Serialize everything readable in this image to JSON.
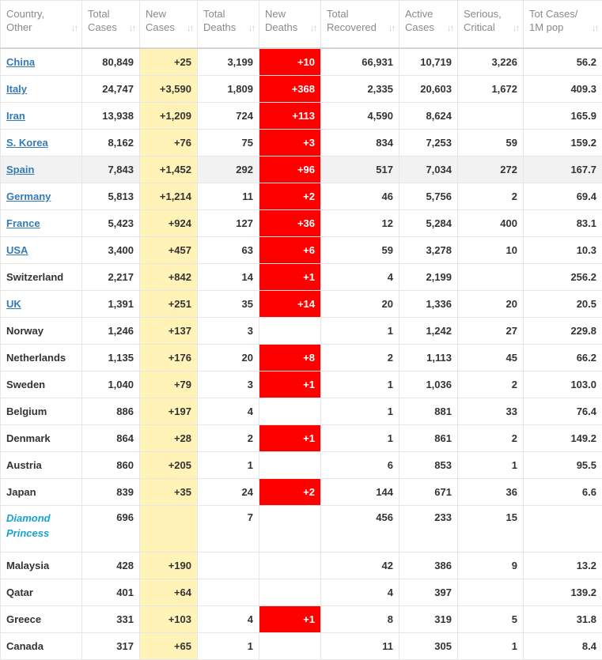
{
  "headers": [
    {
      "label": "Country,\nOther",
      "key": "country"
    },
    {
      "label": "Total\nCases",
      "key": "total_cases"
    },
    {
      "label": "New\nCases",
      "key": "new_cases"
    },
    {
      "label": "Total\nDeaths",
      "key": "total_deaths"
    },
    {
      "label": "New\nDeaths",
      "key": "new_deaths"
    },
    {
      "label": "Total\nRecovered",
      "key": "total_recovered"
    },
    {
      "label": "Active\nCases",
      "key": "active_cases"
    },
    {
      "label": "Serious,\nCritical",
      "key": "serious"
    },
    {
      "label": "Tot Cases/\n1M pop",
      "key": "per_million"
    }
  ],
  "colors": {
    "new_cases_bg": "#fff3b8",
    "new_deaths_bg": "#ff0000",
    "link": "#337ab7"
  },
  "rows": [
    {
      "country": "China",
      "link": true,
      "total_cases": "80,849",
      "new_cases": "+25",
      "total_deaths": "3,199",
      "new_deaths": "+10",
      "total_recovered": "66,931",
      "active_cases": "10,719",
      "serious": "3,226",
      "per_million": "56.2"
    },
    {
      "country": "Italy",
      "link": true,
      "total_cases": "24,747",
      "new_cases": "+3,590",
      "total_deaths": "1,809",
      "new_deaths": "+368",
      "total_recovered": "2,335",
      "active_cases": "20,603",
      "serious": "1,672",
      "per_million": "409.3"
    },
    {
      "country": "Iran",
      "link": true,
      "total_cases": "13,938",
      "new_cases": "+1,209",
      "total_deaths": "724",
      "new_deaths": "+113",
      "total_recovered": "4,590",
      "active_cases": "8,624",
      "serious": "",
      "per_million": "165.9"
    },
    {
      "country": "S. Korea",
      "link": true,
      "total_cases": "8,162",
      "new_cases": "+76",
      "total_deaths": "75",
      "new_deaths": "+3",
      "total_recovered": "834",
      "active_cases": "7,253",
      "serious": "59",
      "per_million": "159.2"
    },
    {
      "country": "Spain",
      "link": true,
      "highlight": true,
      "total_cases": "7,843",
      "new_cases": "+1,452",
      "total_deaths": "292",
      "new_deaths": "+96",
      "total_recovered": "517",
      "active_cases": "7,034",
      "serious": "272",
      "per_million": "167.7"
    },
    {
      "country": "Germany",
      "link": true,
      "total_cases": "5,813",
      "new_cases": "+1,214",
      "total_deaths": "11",
      "new_deaths": "+2",
      "total_recovered": "46",
      "active_cases": "5,756",
      "serious": "2",
      "per_million": "69.4"
    },
    {
      "country": "France",
      "link": true,
      "total_cases": "5,423",
      "new_cases": "+924",
      "total_deaths": "127",
      "new_deaths": "+36",
      "total_recovered": "12",
      "active_cases": "5,284",
      "serious": "400",
      "per_million": "83.1"
    },
    {
      "country": "USA",
      "link": true,
      "total_cases": "3,400",
      "new_cases": "+457",
      "total_deaths": "63",
      "new_deaths": "+6",
      "total_recovered": "59",
      "active_cases": "3,278",
      "serious": "10",
      "per_million": "10.3"
    },
    {
      "country": "Switzerland",
      "link": false,
      "total_cases": "2,217",
      "new_cases": "+842",
      "total_deaths": "14",
      "new_deaths": "+1",
      "total_recovered": "4",
      "active_cases": "2,199",
      "serious": "",
      "per_million": "256.2"
    },
    {
      "country": "UK",
      "link": true,
      "total_cases": "1,391",
      "new_cases": "+251",
      "total_deaths": "35",
      "new_deaths": "+14",
      "total_recovered": "20",
      "active_cases": "1,336",
      "serious": "20",
      "per_million": "20.5"
    },
    {
      "country": "Norway",
      "link": false,
      "total_cases": "1,246",
      "new_cases": "+137",
      "total_deaths": "3",
      "new_deaths": "",
      "total_recovered": "1",
      "active_cases": "1,242",
      "serious": "27",
      "per_million": "229.8"
    },
    {
      "country": "Netherlands",
      "link": false,
      "total_cases": "1,135",
      "new_cases": "+176",
      "total_deaths": "20",
      "new_deaths": "+8",
      "total_recovered": "2",
      "active_cases": "1,113",
      "serious": "45",
      "per_million": "66.2"
    },
    {
      "country": "Sweden",
      "link": false,
      "total_cases": "1,040",
      "new_cases": "+79",
      "total_deaths": "3",
      "new_deaths": "+1",
      "total_recovered": "1",
      "active_cases": "1,036",
      "serious": "2",
      "per_million": "103.0"
    },
    {
      "country": "Belgium",
      "link": false,
      "total_cases": "886",
      "new_cases": "+197",
      "total_deaths": "4",
      "new_deaths": "",
      "total_recovered": "1",
      "active_cases": "881",
      "serious": "33",
      "per_million": "76.4"
    },
    {
      "country": "Denmark",
      "link": false,
      "total_cases": "864",
      "new_cases": "+28",
      "total_deaths": "2",
      "new_deaths": "+1",
      "total_recovered": "1",
      "active_cases": "861",
      "serious": "2",
      "per_million": "149.2"
    },
    {
      "country": "Austria",
      "link": false,
      "total_cases": "860",
      "new_cases": "+205",
      "total_deaths": "1",
      "new_deaths": "",
      "total_recovered": "6",
      "active_cases": "853",
      "serious": "1",
      "per_million": "95.5"
    },
    {
      "country": "Japan",
      "link": false,
      "total_cases": "839",
      "new_cases": "+35",
      "total_deaths": "24",
      "new_deaths": "+2",
      "total_recovered": "144",
      "active_cases": "671",
      "serious": "36",
      "per_million": "6.6"
    },
    {
      "country": "Diamond Princess",
      "link": true,
      "diamond": true,
      "tall": true,
      "total_cases": "696",
      "new_cases": "",
      "total_deaths": "7",
      "new_deaths": "",
      "total_recovered": "456",
      "active_cases": "233",
      "serious": "15",
      "per_million": ""
    },
    {
      "country": "Malaysia",
      "link": false,
      "total_cases": "428",
      "new_cases": "+190",
      "total_deaths": "",
      "new_deaths": "",
      "total_recovered": "42",
      "active_cases": "386",
      "serious": "9",
      "per_million": "13.2"
    },
    {
      "country": "Qatar",
      "link": false,
      "total_cases": "401",
      "new_cases": "+64",
      "total_deaths": "",
      "new_deaths": "",
      "total_recovered": "4",
      "active_cases": "397",
      "serious": "",
      "per_million": "139.2"
    },
    {
      "country": "Greece",
      "link": false,
      "total_cases": "331",
      "new_cases": "+103",
      "total_deaths": "4",
      "new_deaths": "+1",
      "total_recovered": "8",
      "active_cases": "319",
      "serious": "5",
      "per_million": "31.8"
    },
    {
      "country": "Canada",
      "link": false,
      "total_cases": "317",
      "new_cases": "+65",
      "total_deaths": "1",
      "new_deaths": "",
      "total_recovered": "11",
      "active_cases": "305",
      "serious": "1",
      "per_million": "8.4"
    }
  ]
}
